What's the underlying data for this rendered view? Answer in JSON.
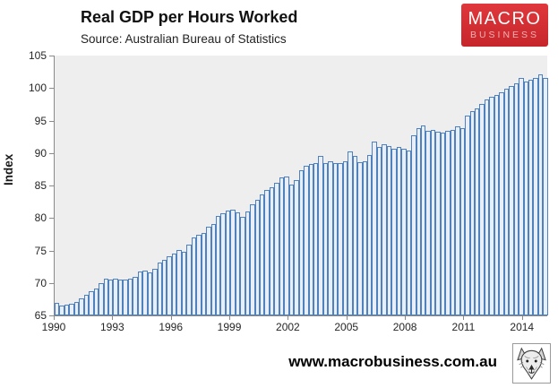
{
  "header": {
    "title": "Real GDP per Hours Worked",
    "source_note": "Source: Australian Bureau of Statistics"
  },
  "brand": {
    "name_top": "MACRO",
    "name_bottom": "BUSINESS",
    "bg_color": "#d32a2f",
    "text_color": "#ffffff",
    "subtext_color": "#f2b0b3"
  },
  "chart_data": {
    "type": "bar",
    "title": "Real GDP per Hours Worked",
    "subtitle": "Source: Australian Bureau of Statistics",
    "xlabel": "",
    "ylabel": "Index",
    "ylim": [
      65,
      105
    ],
    "yticks": [
      65,
      70,
      75,
      80,
      85,
      90,
      95,
      100,
      105
    ],
    "xtick_labels": [
      "1990",
      "1993",
      "1996",
      "1999",
      "2002",
      "2005",
      "2008",
      "2011",
      "2014"
    ],
    "frequency": "quarterly",
    "grid": false,
    "legend": "none",
    "plot_bg": "#eeeeee",
    "bar_border_color": "#4f81bd",
    "bar_fill_color": "#e9effa",
    "categories": [
      "1990Q1",
      "1990Q2",
      "1990Q3",
      "1990Q4",
      "1991Q1",
      "1991Q2",
      "1991Q3",
      "1991Q4",
      "1992Q1",
      "1992Q2",
      "1992Q3",
      "1992Q4",
      "1993Q1",
      "1993Q2",
      "1993Q3",
      "1993Q4",
      "1994Q1",
      "1994Q2",
      "1994Q3",
      "1994Q4",
      "1995Q1",
      "1995Q2",
      "1995Q3",
      "1995Q4",
      "1996Q1",
      "1996Q2",
      "1996Q3",
      "1996Q4",
      "1997Q1",
      "1997Q2",
      "1997Q3",
      "1997Q4",
      "1998Q1",
      "1998Q2",
      "1998Q3",
      "1998Q4",
      "1999Q1",
      "1999Q2",
      "1999Q3",
      "1999Q4",
      "2000Q1",
      "2000Q2",
      "2000Q3",
      "2000Q4",
      "2001Q1",
      "2001Q2",
      "2001Q3",
      "2001Q4",
      "2002Q1",
      "2002Q2",
      "2002Q3",
      "2002Q4",
      "2003Q1",
      "2003Q2",
      "2003Q3",
      "2003Q4",
      "2004Q1",
      "2004Q2",
      "2004Q3",
      "2004Q4",
      "2005Q1",
      "2005Q2",
      "2005Q3",
      "2005Q4",
      "2006Q1",
      "2006Q2",
      "2006Q3",
      "2006Q4",
      "2007Q1",
      "2007Q2",
      "2007Q3",
      "2007Q4",
      "2008Q1",
      "2008Q2",
      "2008Q3",
      "2008Q4",
      "2009Q1",
      "2009Q2",
      "2009Q3",
      "2009Q4",
      "2010Q1",
      "2010Q2",
      "2010Q3",
      "2010Q4",
      "2011Q1",
      "2011Q2",
      "2011Q3",
      "2011Q4",
      "2012Q1",
      "2012Q2",
      "2012Q3",
      "2012Q4",
      "2013Q1",
      "2013Q2",
      "2013Q3",
      "2013Q4",
      "2014Q1",
      "2014Q2",
      "2014Q3",
      "2014Q4",
      "2015Q1"
    ],
    "values": [
      66.9,
      66.5,
      66.6,
      66.8,
      67.1,
      67.6,
      68.2,
      68.7,
      69.1,
      70.0,
      70.6,
      70.5,
      70.7,
      70.5,
      70.5,
      70.7,
      71.0,
      71.7,
      71.9,
      71.6,
      72.2,
      73.1,
      73.5,
      74.1,
      74.5,
      75.1,
      74.8,
      75.9,
      77.0,
      77.4,
      77.7,
      78.7,
      79.1,
      80.3,
      80.8,
      81.1,
      81.3,
      80.9,
      80.2,
      81.0,
      82.1,
      82.8,
      83.6,
      84.3,
      84.8,
      85.4,
      86.2,
      86.4,
      85.2,
      85.8,
      87.4,
      88.1,
      88.3,
      88.5,
      89.5,
      88.5,
      88.7,
      88.4,
      88.5,
      88.8,
      90.2,
      89.6,
      88.6,
      88.8,
      89.7,
      91.8,
      90.9,
      91.3,
      91.1,
      90.6,
      90.9,
      90.6,
      90.4,
      92.7,
      93.9,
      94.3,
      93.4,
      93.6,
      93.3,
      93.2,
      93.4,
      93.6,
      94.1,
      93.9,
      95.7,
      96.4,
      96.9,
      97.6,
      98.2,
      98.7,
      98.9,
      99.4,
      99.9,
      100.3,
      100.8,
      101.5,
      101.0,
      101.3,
      101.5,
      102.1,
      101.5
    ]
  },
  "footer": {
    "url": "www.macrobusiness.com.au",
    "logo_icon": "wolf-head-icon"
  }
}
